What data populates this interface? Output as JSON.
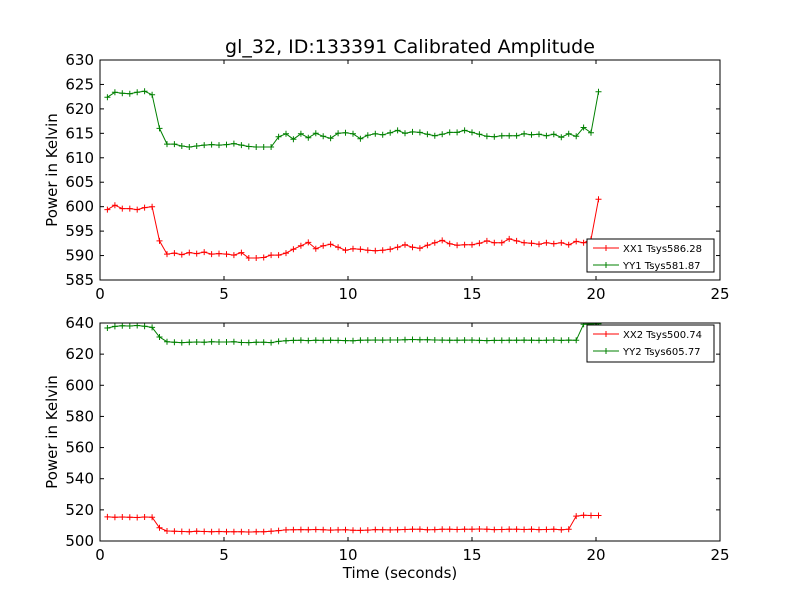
{
  "title": "gl_32, ID:133391 Calibrated Amplitude",
  "chart_data": [
    {
      "type": "line",
      "ylabel": "Power in Kelvin",
      "xlabel": "",
      "xlim": [
        0,
        25
      ],
      "ylim": [
        585,
        630
      ],
      "x_ticks": [
        "0",
        "5",
        "10",
        "15",
        "20",
        "25"
      ],
      "y_ticks": [
        "585",
        "590",
        "595",
        "600",
        "605",
        "610",
        "615",
        "620",
        "625",
        "630"
      ],
      "legend_position": "lower-right",
      "x": [
        0.3,
        0.6,
        0.9,
        1.2,
        1.5,
        1.8,
        2.1,
        2.4,
        2.7,
        3.0,
        3.3,
        3.6,
        3.9,
        4.2,
        4.5,
        4.8,
        5.1,
        5.4,
        5.7,
        6.0,
        6.3,
        6.6,
        6.9,
        7.2,
        7.5,
        7.8,
        8.1,
        8.4,
        8.7,
        9.0,
        9.3,
        9.6,
        9.9,
        10.2,
        10.5,
        10.8,
        11.1,
        11.4,
        11.7,
        12.0,
        12.3,
        12.6,
        12.9,
        13.2,
        13.5,
        13.8,
        14.1,
        14.4,
        14.7,
        15.0,
        15.3,
        15.6,
        15.9,
        16.2,
        16.5,
        16.8,
        17.1,
        17.4,
        17.7,
        18.0,
        18.3,
        18.6,
        18.9,
        19.2,
        19.5,
        19.8,
        20.1
      ],
      "series": [
        {
          "name": "XX1 Tsys586.28",
          "color": "#ff0000",
          "values": [
            599.4,
            600.3,
            599.6,
            599.6,
            599.4,
            599.8,
            600.0,
            593.0,
            590.3,
            590.5,
            590.2,
            590.6,
            590.4,
            590.7,
            590.3,
            590.4,
            590.3,
            590.1,
            590.6,
            589.5,
            589.5,
            589.6,
            590.1,
            590.1,
            590.5,
            591.3,
            592.0,
            592.7,
            591.4,
            592.0,
            592.3,
            591.7,
            591.1,
            591.4,
            591.3,
            591.1,
            591.0,
            591.1,
            591.3,
            591.7,
            592.2,
            591.7,
            591.5,
            592.1,
            592.6,
            593.1,
            592.4,
            592.1,
            592.2,
            592.2,
            592.5,
            593.0,
            592.6,
            592.6,
            593.4,
            593.0,
            592.6,
            592.5,
            592.3,
            592.6,
            592.4,
            592.6,
            592.2,
            592.9,
            592.6,
            593.3,
            601.5
          ]
        },
        {
          "name": "YY1 Tsys581.87",
          "color": "#008000",
          "values": [
            622.4,
            623.4,
            623.2,
            623.1,
            623.4,
            623.6,
            622.9,
            616.0,
            612.8,
            612.8,
            612.4,
            612.2,
            612.4,
            612.6,
            612.7,
            612.6,
            612.7,
            612.9,
            612.6,
            612.3,
            612.2,
            612.2,
            612.2,
            614.3,
            614.9,
            613.8,
            614.9,
            614.1,
            615.0,
            614.4,
            614.0,
            615.0,
            615.1,
            614.9,
            613.9,
            614.6,
            614.9,
            614.7,
            615.1,
            615.6,
            615.0,
            615.3,
            615.2,
            614.8,
            614.5,
            614.8,
            615.2,
            615.2,
            615.6,
            615.2,
            614.8,
            614.4,
            614.3,
            614.5,
            614.5,
            614.5,
            614.9,
            614.7,
            614.8,
            614.5,
            614.8,
            614.2,
            614.9,
            614.4,
            616.2,
            615.1,
            623.5
          ]
        }
      ]
    },
    {
      "type": "line",
      "ylabel": "Power in Kelvin",
      "xlabel": "Time (seconds)",
      "xlim": [
        0,
        25
      ],
      "ylim": [
        500,
        640
      ],
      "x_ticks": [
        "0",
        "5",
        "10",
        "15",
        "20",
        "25"
      ],
      "y_ticks": [
        "500",
        "520",
        "540",
        "560",
        "580",
        "600",
        "620",
        "640"
      ],
      "legend_position": "upper-right",
      "x": [
        0.3,
        0.6,
        0.9,
        1.2,
        1.5,
        1.8,
        2.1,
        2.4,
        2.7,
        3.0,
        3.3,
        3.6,
        3.9,
        4.2,
        4.5,
        4.8,
        5.1,
        5.4,
        5.7,
        6.0,
        6.3,
        6.6,
        6.9,
        7.2,
        7.5,
        7.8,
        8.1,
        8.4,
        8.7,
        9.0,
        9.3,
        9.6,
        9.9,
        10.2,
        10.5,
        10.8,
        11.1,
        11.4,
        11.7,
        12.0,
        12.3,
        12.6,
        12.9,
        13.2,
        13.5,
        13.8,
        14.1,
        14.4,
        14.7,
        15.0,
        15.3,
        15.6,
        15.9,
        16.2,
        16.5,
        16.8,
        17.1,
        17.4,
        17.7,
        18.0,
        18.3,
        18.6,
        18.9,
        19.2,
        19.5,
        19.8,
        20.1
      ],
      "series": [
        {
          "name": "XX2 Tsys500.74",
          "color": "#ff0000",
          "values": [
            515.5,
            515.3,
            515.4,
            515.2,
            515.1,
            515.4,
            515.3,
            508.5,
            506.4,
            506.2,
            506.1,
            506.0,
            506.2,
            506.1,
            506.0,
            506.1,
            506.0,
            505.9,
            506.0,
            505.8,
            505.9,
            506.0,
            506.2,
            506.7,
            507.1,
            507.2,
            507.3,
            507.2,
            507.4,
            507.2,
            507.0,
            507.1,
            507.2,
            506.9,
            506.8,
            507.0,
            507.3,
            507.2,
            507.1,
            507.2,
            507.4,
            507.6,
            507.5,
            507.2,
            507.3,
            507.6,
            507.5,
            507.4,
            507.5,
            507.6,
            507.7,
            507.5,
            507.3,
            507.4,
            507.5,
            507.6,
            507.4,
            507.5,
            507.3,
            507.4,
            507.5,
            507.2,
            507.6,
            516.0,
            516.5,
            516.4,
            516.4
          ]
        },
        {
          "name": "YY2 Tsys605.77",
          "color": "#008000",
          "values": [
            636.8,
            637.8,
            638.2,
            638.1,
            638.4,
            637.9,
            637.2,
            631.0,
            628.0,
            627.7,
            627.4,
            627.6,
            627.8,
            627.7,
            627.9,
            627.8,
            627.8,
            627.9,
            627.5,
            627.4,
            627.6,
            627.6,
            627.4,
            628.2,
            628.6,
            628.8,
            628.9,
            628.7,
            628.9,
            628.8,
            628.9,
            628.8,
            628.7,
            628.6,
            628.9,
            629.0,
            629.1,
            629.0,
            629.1,
            629.1,
            629.3,
            629.4,
            629.3,
            629.2,
            629.1,
            629.0,
            628.9,
            628.9,
            629.0,
            629.0,
            628.8,
            628.7,
            628.8,
            628.8,
            628.9,
            628.9,
            629.0,
            628.9,
            628.8,
            628.9,
            629.1,
            628.8,
            629.0,
            628.9,
            639.2,
            639.4,
            639.5
          ]
        }
      ]
    }
  ]
}
